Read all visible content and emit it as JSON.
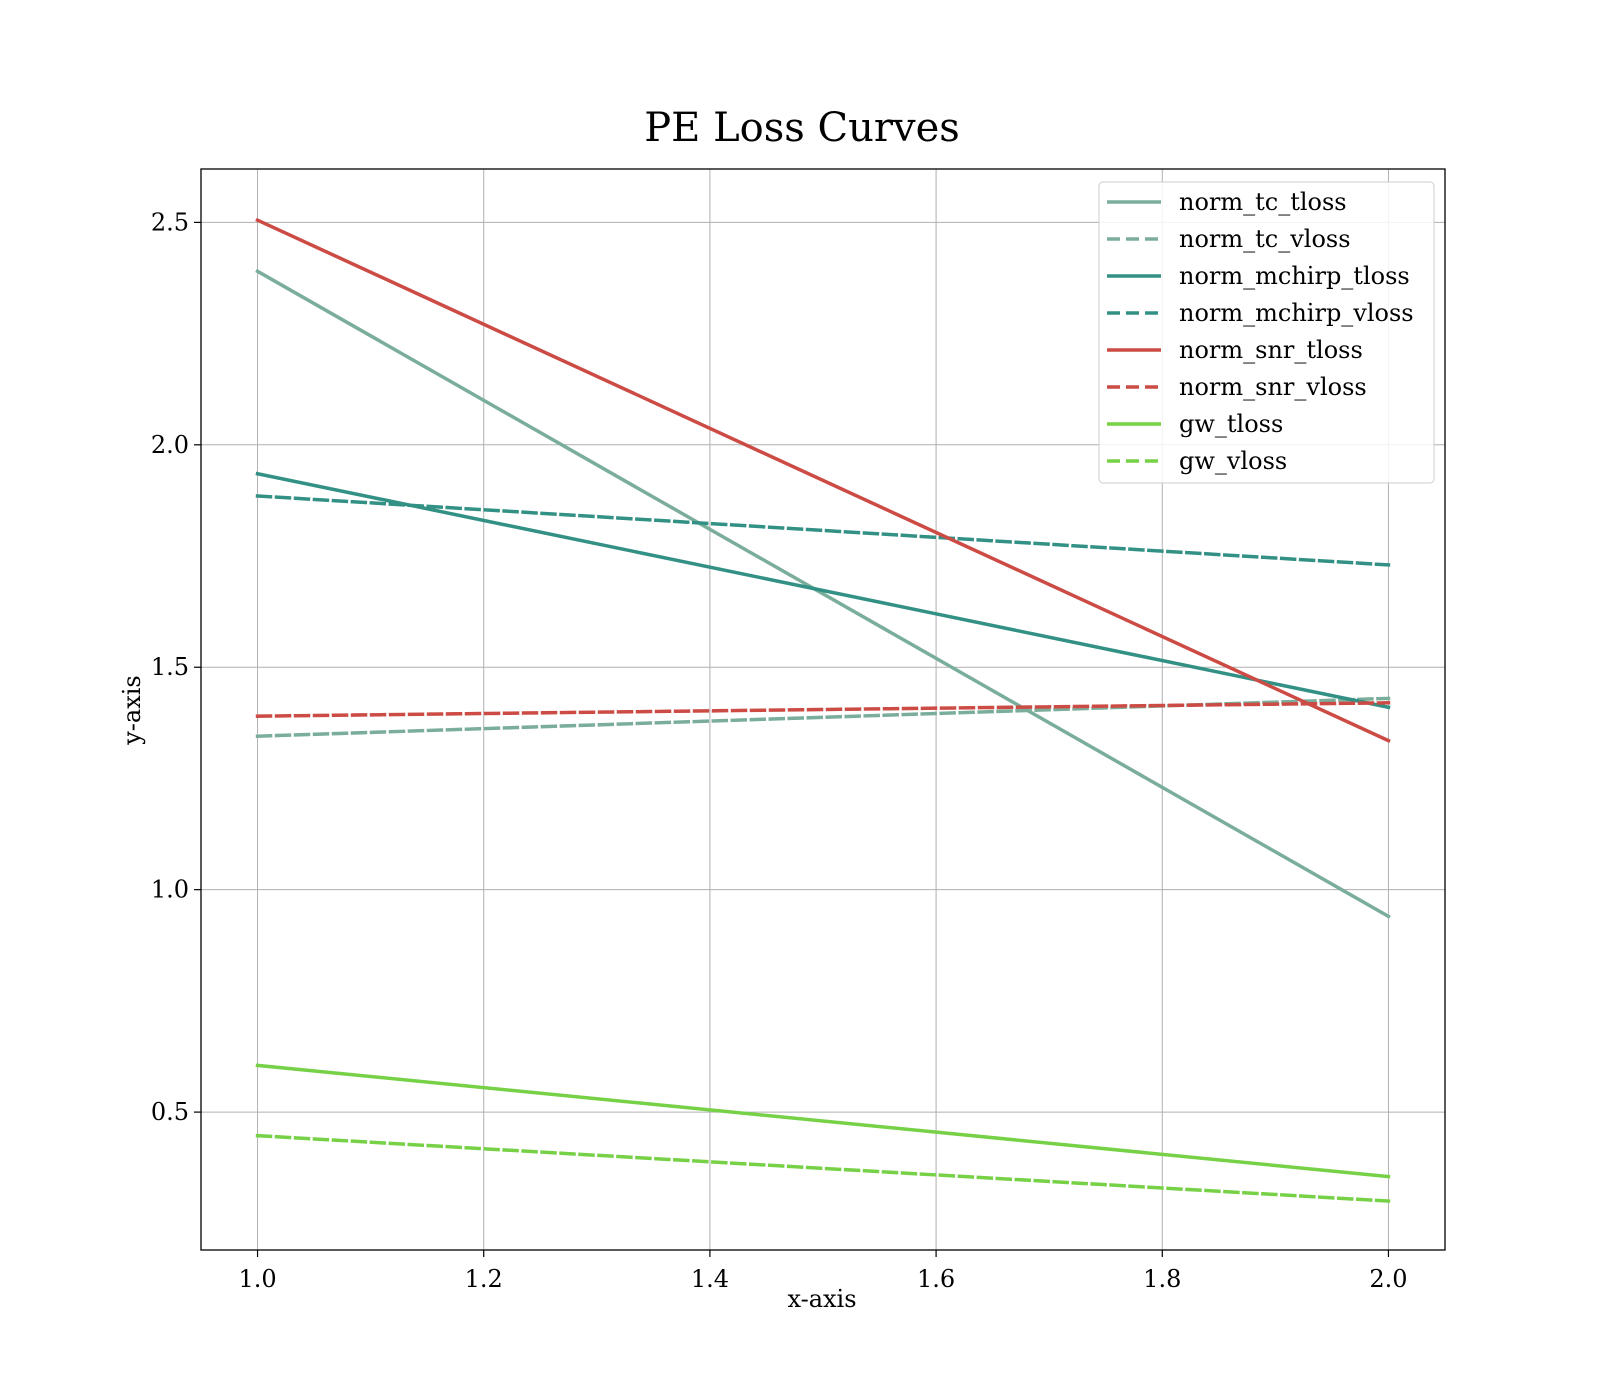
{
  "chart_data": {
    "type": "line",
    "title": "PE Loss Curves",
    "xlabel": "x-axis",
    "ylabel": "y-axis",
    "x": [
      1.0,
      2.0
    ],
    "xlim": [
      0.95,
      2.05
    ],
    "ylim": [
      0.19,
      2.62
    ],
    "xticks": [
      1.0,
      1.2,
      1.4,
      1.6,
      1.8,
      2.0
    ],
    "xtick_labels": [
      "1.0",
      "1.2",
      "1.4",
      "1.6",
      "1.8",
      "2.0"
    ],
    "yticks": [
      0.5,
      1.0,
      1.5,
      2.0,
      2.5
    ],
    "ytick_labels": [
      "0.5",
      "1.0",
      "1.5",
      "2.0",
      "2.5"
    ],
    "grid": true,
    "legend_position": "top-right",
    "series": [
      {
        "name": "norm_tc_tloss",
        "values": [
          2.39,
          0.94
        ],
        "color": "#7aae9a",
        "dash": "solid"
      },
      {
        "name": "norm_tc_vloss",
        "values": [
          1.345,
          1.43
        ],
        "color": "#7aae9a",
        "dash": "dashed"
      },
      {
        "name": "norm_mchirp_tloss",
        "values": [
          1.935,
          1.41
        ],
        "color": "#329184",
        "dash": "solid"
      },
      {
        "name": "norm_mchirp_vloss",
        "values": [
          1.885,
          1.73
        ],
        "color": "#329184",
        "dash": "dashed"
      },
      {
        "name": "norm_snr_tloss",
        "values": [
          2.505,
          1.335
        ],
        "color": "#cc4b45",
        "dash": "solid"
      },
      {
        "name": "norm_snr_vloss",
        "values": [
          1.39,
          1.42
        ],
        "color": "#cc4b45",
        "dash": "dashed"
      },
      {
        "name": "gw_tloss",
        "values": [
          0.605,
          0.355
        ],
        "color": "#76d146",
        "dash": "solid"
      },
      {
        "name": "gw_vloss",
        "values": [
          0.447,
          0.3
        ],
        "color": "#76d146",
        "dash": "dashed"
      }
    ]
  }
}
